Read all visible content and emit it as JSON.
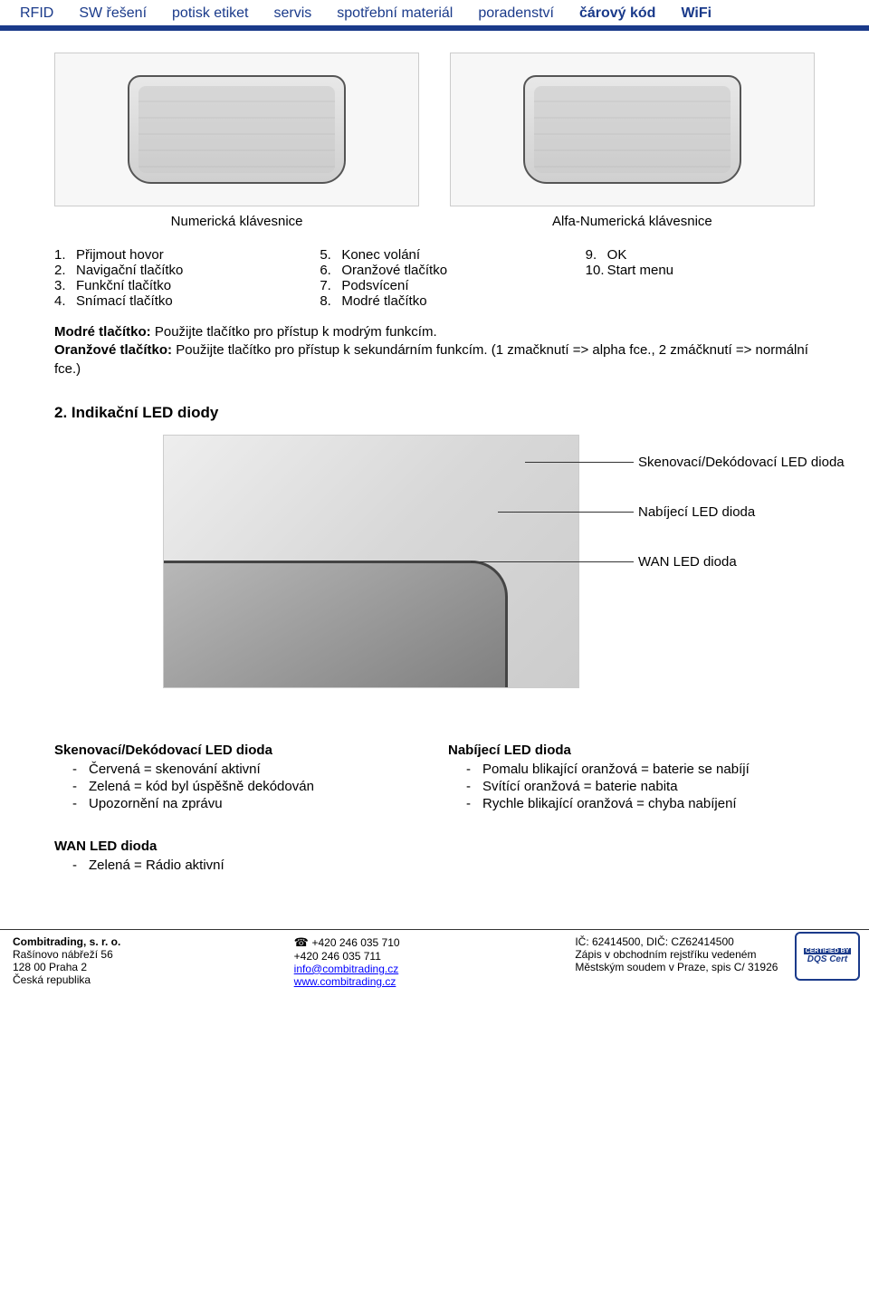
{
  "nav": {
    "items": [
      "RFID",
      "SW řešení",
      "potisk etiket",
      "servis",
      "spotřební materiál",
      "poradenství",
      "čárový kód",
      "WiFi"
    ],
    "bold_indices": [
      6,
      7
    ],
    "accent_color": "#1a3a8a"
  },
  "keyboards": {
    "left_caption": "Numerická klávesnice",
    "right_caption": "Alfa-Numerická klávesnice"
  },
  "legend": {
    "col1": [
      {
        "n": "1.",
        "t": "Přijmout hovor"
      },
      {
        "n": "2.",
        "t": "Navigační tlačítko"
      },
      {
        "n": "3.",
        "t": "Funkční tlačítko"
      },
      {
        "n": "4.",
        "t": "Snímací tlačítko"
      }
    ],
    "col2": [
      {
        "n": "5.",
        "t": "Konec volání"
      },
      {
        "n": "6.",
        "t": "Oranžové tlačítko"
      },
      {
        "n": "7.",
        "t": "Podsvícení"
      },
      {
        "n": "8.",
        "t": "Modré tlačítko"
      }
    ],
    "col3": [
      {
        "n": "9.",
        "t": "OK"
      },
      {
        "n": "10.",
        "t": "Start menu"
      }
    ]
  },
  "para": {
    "p1_b": "Modré tlačítko:",
    "p1": " Použijte tlačítko pro přístup k modrým funkcím.",
    "p2_b": "Oranžové tlačítko:",
    "p2": " Použijte tlačítko pro přístup k sekundárním funkcím. (1 zmačknutí => alpha fce., 2 zmáčknutí => normální fce.)"
  },
  "section2": {
    "title": "2. Indikační LED diody",
    "labels": {
      "scan": "Skenovací/Dekódovací LED dioda",
      "charge": "Nabíjecí LED dioda",
      "wan": "WAN LED dioda"
    }
  },
  "leds": {
    "left": {
      "title": "Skenovací/Dekódovací LED dioda",
      "items": [
        "Červená = skenování aktivní",
        "Zelená = kód byl úspěšně dekódován",
        "Upozornění na zprávu"
      ]
    },
    "right": {
      "title": "Nabíjecí LED dioda",
      "items": [
        "Pomalu blikající oranžová = baterie se nabíjí",
        "Svítící oranžová = baterie nabita",
        "Rychle blikající oranžová = chyba nabíjení"
      ]
    },
    "wan": {
      "title": "WAN LED dioda",
      "items": [
        "Zelená = Rádio aktivní"
      ]
    }
  },
  "footer": {
    "col1": [
      "Combitrading, s. r. o.",
      "Rašínovo nábřeží 56",
      "128 00  Praha 2",
      "Česká republika"
    ],
    "col2_phone1": "+420 246 035 710",
    "col2_phone2": "+420 246 035 711",
    "col2_email": "info@combitrading.cz",
    "col2_web": "www.combitrading.cz",
    "col3": [
      "IČ: 62414500, DIČ: CZ62414500",
      "Zápis v obchodním rejstříku vedeném",
      "Městským soudem v Praze, spis C/ 31926"
    ],
    "cert_top": "CERTIFIED BY",
    "cert_name": "DQS Cert"
  }
}
